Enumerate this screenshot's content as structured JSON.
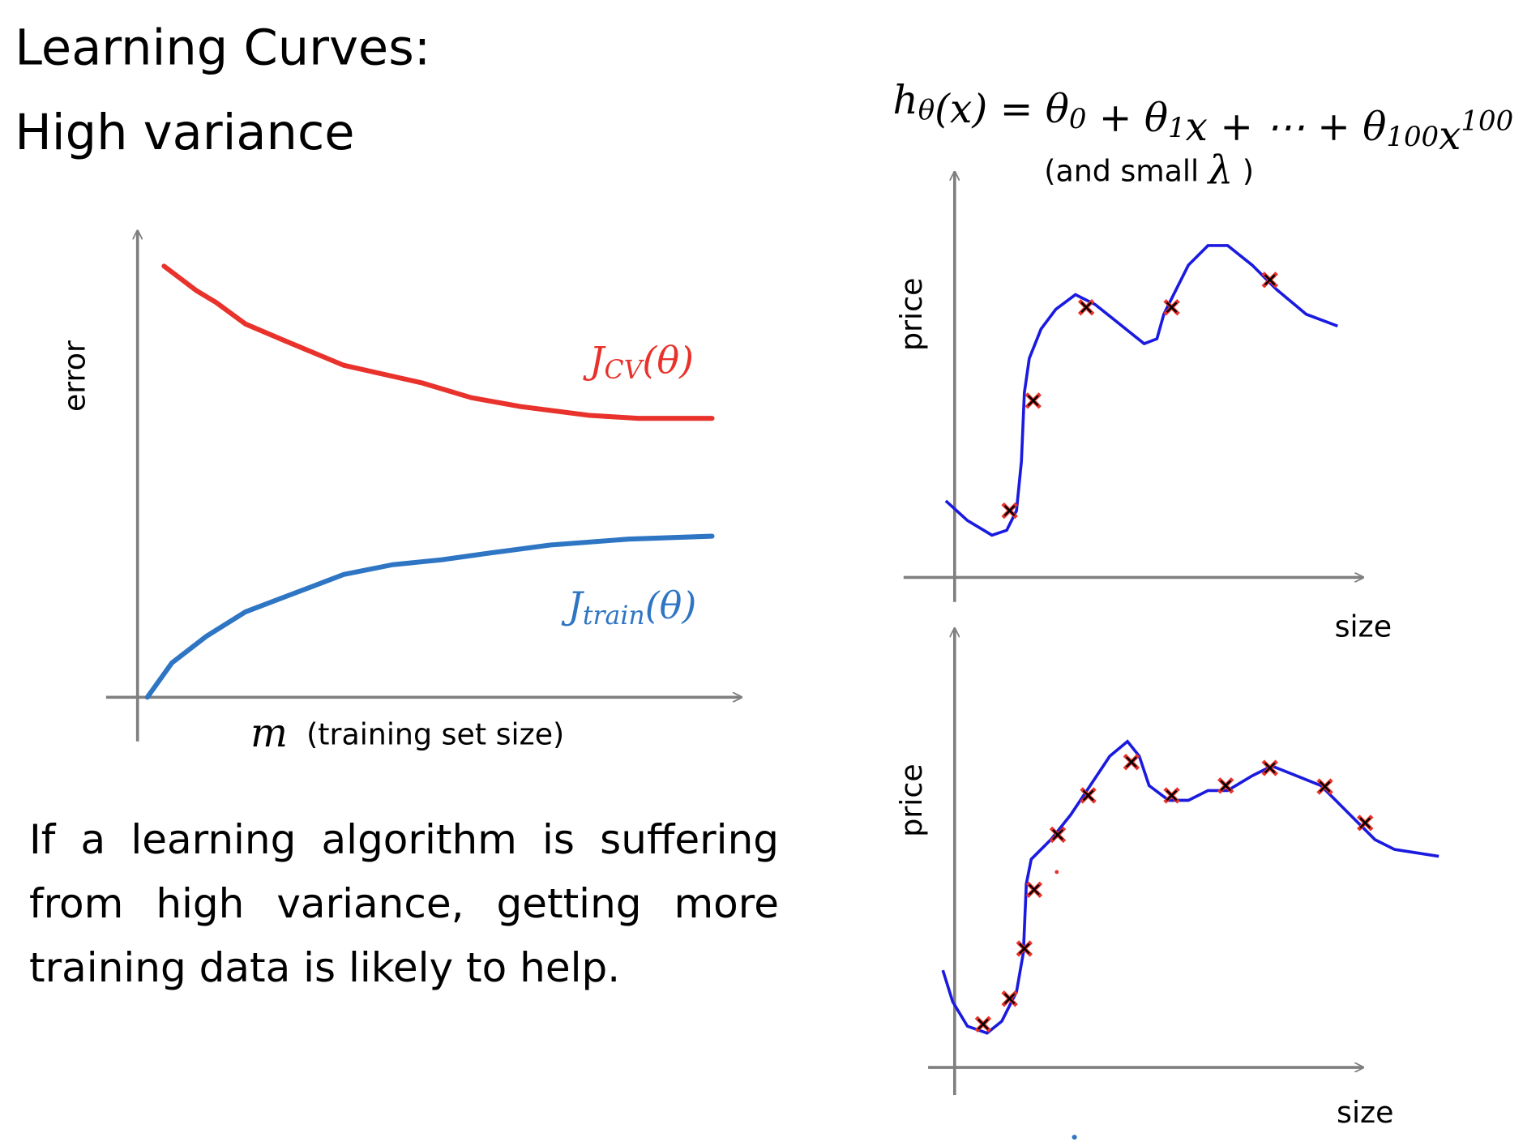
{
  "header": {
    "title_lines": [
      "Learning Curves:",
      "High variance"
    ]
  },
  "learning_curve": {
    "y_label": "error",
    "x_var": "m",
    "x_label": "(training set size)",
    "cv_label": {
      "base": "J",
      "sub": "CV",
      "arg": "(θ)"
    },
    "train_label": {
      "base": "J",
      "sub": "train",
      "arg": "(θ)"
    }
  },
  "hypothesis": {
    "formula": [
      {
        "text": "h",
        "sub": "θ"
      },
      {
        "text": "(x) = θ",
        "sub": "0"
      },
      {
        "text": " + θ",
        "sub": "1"
      },
      {
        "text": "x + ⋯ + θ",
        "sub": "100"
      },
      {
        "text": "x",
        "sup": "100"
      }
    ],
    "note": {
      "before": "(and small ",
      "symbol": "λ",
      "after": " )"
    }
  },
  "plots": [
    {
      "y_label": "price",
      "x_label": "size"
    },
    {
      "y_label": "price",
      "x_label": "size"
    }
  ],
  "paragraph": "If a learning algorithm is suffering from high variance, getting more training data is likely to help."
}
